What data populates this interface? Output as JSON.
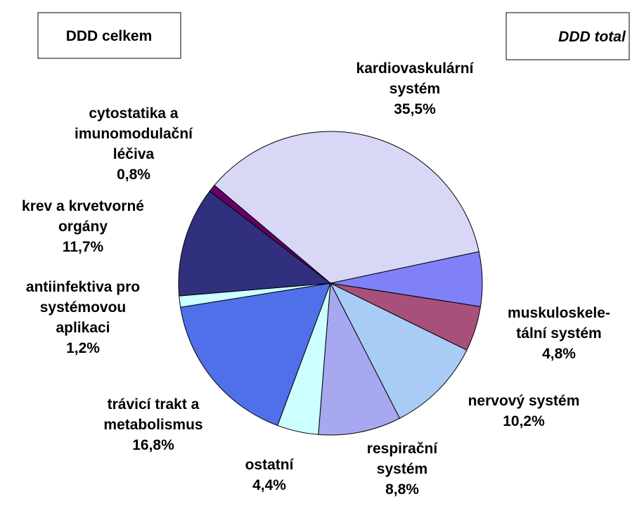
{
  "chart_data": {
    "type": "pie",
    "title": "DDD celkem",
    "subtitle": "DDD total",
    "categories": [
      "kardiovaskulární\nsystém",
      null,
      "muskuloskele-\ntální systém",
      "nervový systém",
      "respirační\nsystém",
      "ostatní",
      "trávicí trakt a\nmetabolismus",
      "antiinfektiva pro\nsystémovou\naplikaci",
      "krev a krvetvorné\norgány",
      "cytostatika a\nimunomodulační\nléčiva"
    ],
    "values": [
      35.5,
      5.8,
      4.8,
      10.2,
      8.8,
      4.4,
      16.8,
      1.2,
      11.7,
      0.8
    ],
    "value_labels": [
      "35,5%",
      null,
      "4,8%",
      "10,2%",
      "8,8%",
      "4,4%",
      "16,8%",
      "1,2%",
      "11,7%",
      "0,8%"
    ],
    "colors": [
      "#d8d8f6",
      "#8080f8",
      "#a8507a",
      "#a8ccf6",
      "#a8a8f0",
      "#ccffff",
      "#5070ea",
      "#ccffff",
      "#30307e",
      "#660066"
    ]
  }
}
